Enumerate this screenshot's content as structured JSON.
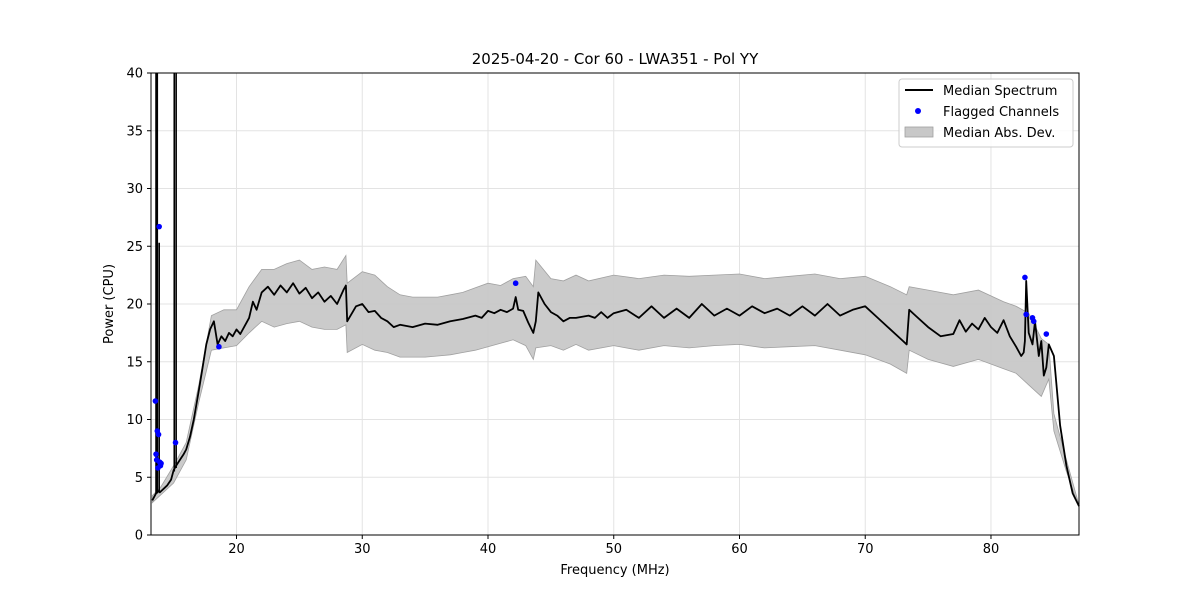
{
  "chart_data": {
    "type": "line",
    "title": "2025-04-20 - Cor 60 - LWA351 - Pol YY",
    "xlabel": "Frequency (MHz)",
    "ylabel": "Power (CPU)",
    "xlim": [
      13.2,
      87.0
    ],
    "ylim": [
      0,
      40
    ],
    "xticks": [
      20,
      30,
      40,
      50,
      60,
      70,
      80
    ],
    "yticks": [
      0,
      5,
      10,
      15,
      20,
      25,
      30,
      35,
      40
    ],
    "grid": true,
    "legend_position": "top-right",
    "legend": [
      {
        "label": "Median Spectrum",
        "kind": "line",
        "color": "#000000"
      },
      {
        "label": "Flagged Channels",
        "kind": "point",
        "color": "#0000ff"
      },
      {
        "label": "Median Abs. Dev.",
        "kind": "band",
        "color": "#c8c8c8"
      }
    ],
    "series": [
      {
        "name": "Median Spectrum",
        "color": "#000000",
        "x": [
          13.3,
          13.5,
          13.6,
          13.7,
          13.8,
          13.9,
          14.0,
          14.2,
          14.5,
          14.8,
          15.0,
          15.2,
          15.5,
          15.8,
          16.0,
          16.3,
          16.6,
          17.0,
          17.3,
          17.6,
          17.9,
          18.2,
          18.5,
          18.8,
          19.1,
          19.4,
          19.7,
          20.0,
          20.3,
          20.6,
          21.0,
          21.3,
          21.6,
          22.0,
          22.5,
          23.0,
          23.5,
          24.0,
          24.5,
          25.0,
          25.5,
          26.0,
          26.5,
          27.0,
          27.5,
          28.0,
          28.5,
          28.7,
          28.8,
          29.5,
          30.0,
          30.5,
          31.0,
          31.5,
          32.0,
          32.5,
          33.0,
          34.0,
          35.0,
          36.0,
          37.0,
          38.0,
          39.0,
          39.5,
          40.0,
          40.5,
          41.0,
          41.5,
          42.0,
          42.2,
          42.4,
          42.8,
          43.2,
          43.6,
          43.8,
          44.0,
          44.5,
          45.0,
          45.5,
          46.0,
          46.5,
          47.0,
          48.0,
          48.5,
          49.0,
          49.5,
          50.0,
          51.0,
          52.0,
          53.0,
          54.0,
          55.0,
          56.0,
          57.0,
          58.0,
          59.0,
          60.0,
          61.0,
          62.0,
          63.0,
          64.0,
          65.0,
          66.0,
          67.0,
          68.0,
          69.0,
          70.0,
          71.0,
          72.0,
          73.0,
          73.3,
          73.5,
          74.0,
          75.0,
          76.0,
          77.0,
          77.5,
          78.0,
          78.5,
          79.0,
          79.5,
          80.0,
          80.5,
          81.0,
          81.5,
          82.0,
          82.4,
          82.6,
          82.7,
          82.8,
          83.0,
          83.3,
          83.5,
          83.8,
          84.0,
          84.2,
          84.4,
          84.6,
          85.0,
          85.5,
          86.0,
          86.5,
          87.0
        ],
        "y": [
          3.0,
          3.4,
          3.6,
          3.7,
          3.8,
          3.7,
          3.8,
          4.0,
          4.3,
          4.8,
          5.6,
          6.0,
          6.5,
          7.0,
          7.4,
          8.5,
          10.0,
          12.5,
          14.5,
          16.5,
          17.8,
          18.5,
          16.5,
          17.2,
          16.8,
          17.5,
          17.2,
          17.8,
          17.4,
          18.0,
          18.8,
          20.2,
          19.5,
          21.0,
          21.5,
          20.8,
          21.6,
          21.0,
          21.8,
          20.9,
          21.4,
          20.5,
          21.0,
          20.2,
          20.7,
          20.0,
          21.2,
          21.6,
          18.5,
          19.8,
          20.0,
          19.3,
          19.4,
          18.8,
          18.5,
          18.0,
          18.2,
          18.0,
          18.3,
          18.2,
          18.5,
          18.7,
          19.0,
          18.8,
          19.4,
          19.2,
          19.5,
          19.3,
          19.6,
          20.6,
          19.5,
          19.4,
          18.4,
          17.5,
          18.5,
          21.0,
          20.0,
          19.3,
          19.0,
          18.5,
          18.8,
          18.8,
          19.0,
          18.8,
          19.3,
          18.8,
          19.2,
          19.5,
          18.8,
          19.8,
          18.8,
          19.6,
          18.8,
          20.0,
          19.0,
          19.6,
          19.0,
          19.8,
          19.2,
          19.6,
          19.0,
          19.8,
          19.0,
          20.0,
          19.0,
          19.5,
          19.8,
          18.8,
          17.8,
          16.8,
          16.5,
          19.5,
          19.0,
          18.0,
          17.2,
          17.4,
          18.6,
          17.6,
          18.3,
          17.8,
          18.8,
          18.0,
          17.5,
          18.6,
          17.2,
          16.3,
          15.5,
          15.8,
          16.8,
          22.0,
          17.5,
          16.5,
          18.5,
          15.5,
          16.8,
          13.8,
          14.5,
          16.5,
          15.5,
          9.5,
          6.0,
          3.6,
          2.5
        ]
      },
      {
        "name": "Median Abs. Dev.",
        "color": "#c8c8c8",
        "x": [
          13.3,
          14.0,
          15.0,
          16.0,
          17.0,
          18.0,
          19.0,
          20.0,
          21.0,
          22.0,
          23.0,
          24.0,
          25.0,
          26.0,
          27.0,
          28.0,
          28.7,
          28.8,
          30.0,
          31.0,
          32.0,
          33.0,
          34.0,
          35.0,
          36.0,
          37.0,
          38.0,
          39.0,
          40.0,
          41.0,
          42.0,
          43.0,
          43.6,
          43.8,
          45.0,
          46.0,
          47.0,
          48.0,
          50.0,
          52.0,
          54.0,
          56.0,
          58.0,
          60.0,
          62.0,
          64.0,
          66.0,
          68.0,
          70.0,
          72.0,
          73.3,
          73.5,
          75.0,
          77.0,
          79.0,
          81.0,
          82.0,
          83.0,
          84.0,
          84.6,
          85.0,
          86.0,
          87.0
        ],
        "lower": [
          2.8,
          3.5,
          4.5,
          6.5,
          11.5,
          16.0,
          16.2,
          16.4,
          17.5,
          18.5,
          18.0,
          18.3,
          18.5,
          18.0,
          17.8,
          17.8,
          18.2,
          15.8,
          16.5,
          16.0,
          15.8,
          15.4,
          15.4,
          15.4,
          15.5,
          15.6,
          15.8,
          16.0,
          16.3,
          16.6,
          16.9,
          16.4,
          15.2,
          16.2,
          16.4,
          16.0,
          16.5,
          16.0,
          16.4,
          16.0,
          16.4,
          16.2,
          16.4,
          16.5,
          16.2,
          16.3,
          16.4,
          16.0,
          15.6,
          14.8,
          14.0,
          16.0,
          15.2,
          14.6,
          15.2,
          14.4,
          14.0,
          13.0,
          12.0,
          13.5,
          9.0,
          5.5,
          2.4
        ],
        "upper": [
          3.4,
          4.2,
          6.0,
          8.0,
          13.0,
          19.0,
          19.5,
          19.5,
          21.5,
          23.0,
          23.0,
          23.5,
          23.8,
          23.0,
          23.2,
          23.0,
          24.2,
          21.8,
          22.8,
          22.5,
          21.5,
          20.8,
          20.6,
          20.6,
          20.6,
          20.8,
          21.0,
          21.4,
          21.8,
          21.6,
          22.2,
          22.4,
          21.5,
          23.8,
          22.2,
          22.0,
          22.5,
          22.0,
          22.5,
          22.2,
          22.5,
          22.4,
          22.5,
          22.6,
          22.2,
          22.4,
          22.6,
          22.2,
          22.4,
          21.5,
          20.8,
          21.5,
          21.2,
          20.8,
          21.2,
          20.2,
          19.8,
          19.2,
          17.0,
          16.5,
          10.5,
          6.5,
          2.6
        ]
      }
    ],
    "spikes": [
      {
        "x": 13.6,
        "bottom": 3.6,
        "top": 40.0
      },
      {
        "x": 13.7,
        "bottom": 3.6,
        "top": 40.0
      },
      {
        "x": 13.85,
        "bottom": 3.7,
        "top": 25.3
      },
      {
        "x": 15.05,
        "bottom": 5.5,
        "top": 40.0
      },
      {
        "x": 15.2,
        "bottom": 5.8,
        "top": 40.0
      }
    ],
    "flagged_channels": {
      "x": [
        13.55,
        13.6,
        13.65,
        13.7,
        13.75,
        13.8,
        13.85,
        13.9,
        13.95,
        14.0,
        15.15,
        18.6,
        42.2,
        82.7,
        82.8,
        83.3,
        83.4,
        84.4
      ],
      "y": [
        11.6,
        7.0,
        6.5,
        9.0,
        5.8,
        8.7,
        26.7,
        6.3,
        6.0,
        6.2,
        8.0,
        16.3,
        21.8,
        22.3,
        19.1,
        18.8,
        18.5,
        17.4
      ]
    }
  }
}
